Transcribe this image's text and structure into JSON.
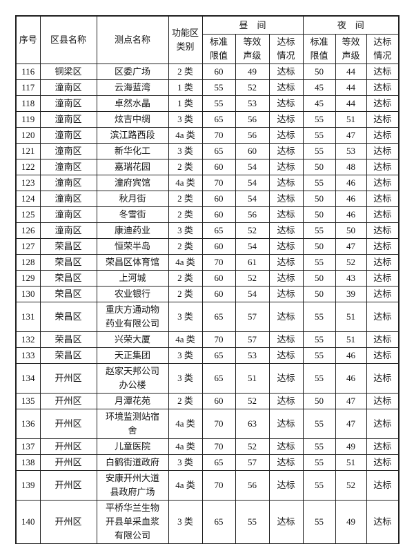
{
  "page": {
    "background": "#ffffff",
    "border_color": "#1f1f1f",
    "text_color": "#141414"
  },
  "table": {
    "headers": {
      "serial": "序号",
      "district": "区县名称",
      "site": "测点名称",
      "zone_line1": "功能区",
      "zone_line2": "类别",
      "group_day": "昼间",
      "group_night": "夜间",
      "sub_standard_l1": "标准",
      "sub_standard_l2": "限值",
      "sub_leq_l1": "等效",
      "sub_leq_l2": "声级",
      "sub_status_l1": "达标",
      "sub_status_l2": "情况"
    },
    "rows": [
      {
        "no": "116",
        "district": "铜梁区",
        "site": "区委广场",
        "zone": "2 类",
        "day": {
          "std": "60",
          "leq": "49",
          "status": "达标"
        },
        "night": {
          "std": "50",
          "leq": "44",
          "status": "达标"
        }
      },
      {
        "no": "117",
        "district": "潼南区",
        "site": "云海蓝湾",
        "zone": "1 类",
        "day": {
          "std": "55",
          "leq": "52",
          "status": "达标"
        },
        "night": {
          "std": "45",
          "leq": "44",
          "status": "达标"
        }
      },
      {
        "no": "118",
        "district": "潼南区",
        "site": "卓然水晶",
        "zone": "1 类",
        "day": {
          "std": "55",
          "leq": "53",
          "status": "达标"
        },
        "night": {
          "std": "45",
          "leq": "44",
          "status": "达标"
        }
      },
      {
        "no": "119",
        "district": "潼南区",
        "site": "炫吉中绸",
        "zone": "3 类",
        "day": {
          "std": "65",
          "leq": "56",
          "status": "达标"
        },
        "night": {
          "std": "55",
          "leq": "51",
          "status": "达标"
        }
      },
      {
        "no": "120",
        "district": "潼南区",
        "site": "滨江路西段",
        "zone": "4a 类",
        "day": {
          "std": "70",
          "leq": "56",
          "status": "达标"
        },
        "night": {
          "std": "55",
          "leq": "47",
          "status": "达标"
        }
      },
      {
        "no": "121",
        "district": "潼南区",
        "site": "新华化工",
        "zone": "3 类",
        "day": {
          "std": "65",
          "leq": "60",
          "status": "达标"
        },
        "night": {
          "std": "55",
          "leq": "53",
          "status": "达标"
        }
      },
      {
        "no": "122",
        "district": "潼南区",
        "site": "嘉瑞花园",
        "zone": "2 类",
        "day": {
          "std": "60",
          "leq": "54",
          "status": "达标"
        },
        "night": {
          "std": "50",
          "leq": "48",
          "status": "达标"
        }
      },
      {
        "no": "123",
        "district": "潼南区",
        "site": "潼府宾馆",
        "zone": "4a 类",
        "day": {
          "std": "70",
          "leq": "54",
          "status": "达标"
        },
        "night": {
          "std": "55",
          "leq": "46",
          "status": "达标"
        }
      },
      {
        "no": "124",
        "district": "潼南区",
        "site": "秋月街",
        "zone": "2 类",
        "day": {
          "std": "60",
          "leq": "54",
          "status": "达标"
        },
        "night": {
          "std": "50",
          "leq": "46",
          "status": "达标"
        }
      },
      {
        "no": "125",
        "district": "潼南区",
        "site": "冬雪街",
        "zone": "2 类",
        "day": {
          "std": "60",
          "leq": "56",
          "status": "达标"
        },
        "night": {
          "std": "50",
          "leq": "46",
          "status": "达标"
        }
      },
      {
        "no": "126",
        "district": "潼南区",
        "site": "康迪药业",
        "zone": "3 类",
        "day": {
          "std": "65",
          "leq": "52",
          "status": "达标"
        },
        "night": {
          "std": "55",
          "leq": "50",
          "status": "达标"
        }
      },
      {
        "no": "127",
        "district": "荣昌区",
        "site": "恒荣半岛",
        "zone": "2 类",
        "day": {
          "std": "60",
          "leq": "54",
          "status": "达标"
        },
        "night": {
          "std": "50",
          "leq": "47",
          "status": "达标"
        }
      },
      {
        "no": "128",
        "district": "荣昌区",
        "site": "荣昌区体育馆",
        "zone": "4a 类",
        "day": {
          "std": "70",
          "leq": "61",
          "status": "达标"
        },
        "night": {
          "std": "55",
          "leq": "52",
          "status": "达标"
        }
      },
      {
        "no": "129",
        "district": "荣昌区",
        "site": "上河城",
        "zone": "2 类",
        "day": {
          "std": "60",
          "leq": "52",
          "status": "达标"
        },
        "night": {
          "std": "50",
          "leq": "43",
          "status": "达标"
        }
      },
      {
        "no": "130",
        "district": "荣昌区",
        "site": "农业银行",
        "zone": "2 类",
        "day": {
          "std": "60",
          "leq": "54",
          "status": "达标"
        },
        "night": {
          "std": "50",
          "leq": "39",
          "status": "达标"
        }
      },
      {
        "no": "131",
        "district": "荣昌区",
        "site": "重庆方通动物药业有限公司",
        "zone": "3 类",
        "day": {
          "std": "65",
          "leq": "57",
          "status": "达标"
        },
        "night": {
          "std": "55",
          "leq": "51",
          "status": "达标"
        }
      },
      {
        "no": "132",
        "district": "荣昌区",
        "site": "兴荣大厦",
        "zone": "4a 类",
        "day": {
          "std": "70",
          "leq": "57",
          "status": "达标"
        },
        "night": {
          "std": "55",
          "leq": "51",
          "status": "达标"
        }
      },
      {
        "no": "133",
        "district": "荣昌区",
        "site": "天正集团",
        "zone": "3 类",
        "day": {
          "std": "65",
          "leq": "53",
          "status": "达标"
        },
        "night": {
          "std": "55",
          "leq": "46",
          "status": "达标"
        }
      },
      {
        "no": "134",
        "district": "开州区",
        "site": "赵家天邦公司办公楼",
        "zone": "3 类",
        "day": {
          "std": "65",
          "leq": "51",
          "status": "达标"
        },
        "night": {
          "std": "55",
          "leq": "46",
          "status": "达标"
        }
      },
      {
        "no": "135",
        "district": "开州区",
        "site": "月潭花苑",
        "zone": "2 类",
        "day": {
          "std": "60",
          "leq": "52",
          "status": "达标"
        },
        "night": {
          "std": "50",
          "leq": "47",
          "status": "达标"
        }
      },
      {
        "no": "136",
        "district": "开州区",
        "site": "环境监测站宿舍",
        "zone": "4a 类",
        "day": {
          "std": "70",
          "leq": "63",
          "status": "达标"
        },
        "night": {
          "std": "55",
          "leq": "47",
          "status": "达标"
        }
      },
      {
        "no": "137",
        "district": "开州区",
        "site": "儿童医院",
        "zone": "4a 类",
        "day": {
          "std": "70",
          "leq": "52",
          "status": "达标"
        },
        "night": {
          "std": "55",
          "leq": "49",
          "status": "达标"
        }
      },
      {
        "no": "138",
        "district": "开州区",
        "site": "白鹤街道政府",
        "zone": "3 类",
        "day": {
          "std": "65",
          "leq": "57",
          "status": "达标"
        },
        "night": {
          "std": "55",
          "leq": "51",
          "status": "达标"
        }
      },
      {
        "no": "139",
        "district": "开州区",
        "site": "安康开州大道县政府广场",
        "zone": "4a 类",
        "day": {
          "std": "70",
          "leq": "56",
          "status": "达标"
        },
        "night": {
          "std": "55",
          "leq": "52",
          "status": "达标"
        }
      },
      {
        "no": "140",
        "district": "开州区",
        "site": "平桥华兰生物开县单采血浆有限公司",
        "zone": "3 类",
        "day": {
          "std": "65",
          "leq": "55",
          "status": "达标"
        },
        "night": {
          "std": "55",
          "leq": "49",
          "status": "达标"
        }
      }
    ]
  }
}
